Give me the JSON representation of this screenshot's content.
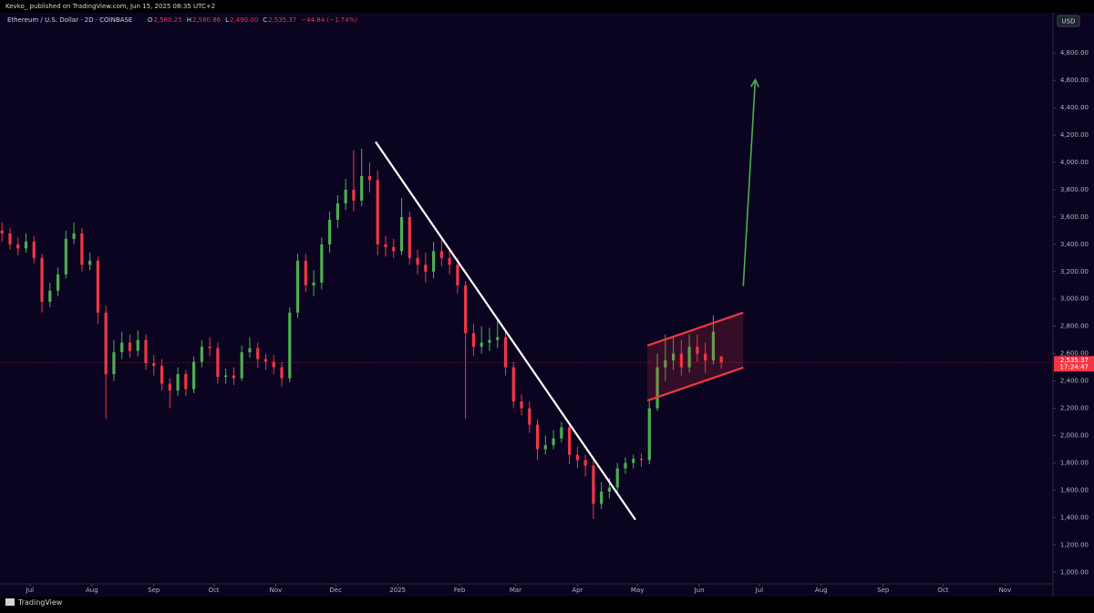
{
  "header": {
    "publisher": "Kevko_ published on TradingView.com, Jun 15, 2025 08:35 UTC+2",
    "symbol": "Ethereum / U.S. Dollar · 2D · COINBASE",
    "ohlc": [
      {
        "key": "O",
        "value": "2,580.25"
      },
      {
        "key": "H",
        "value": "2,580.86"
      },
      {
        "key": "L",
        "value": "2,490.00"
      },
      {
        "key": "C",
        "value": "2,535.37"
      }
    ],
    "change": "−44.84 (−1.74%)",
    "currency": "USD"
  },
  "footer": {
    "brand": "TradingView"
  },
  "chart_data": {
    "type": "candlestick",
    "x": [
      1,
      5,
      9,
      13,
      17,
      21,
      25,
      29,
      33,
      37,
      41,
      45,
      49,
      53,
      57,
      61,
      65,
      69,
      73,
      77,
      81,
      85,
      89,
      93,
      97,
      101,
      105,
      109,
      113,
      117,
      121,
      125,
      129,
      133,
      137,
      141,
      145,
      149,
      153,
      157,
      161,
      165,
      169,
      173,
      177,
      181,
      185,
      189,
      193,
      197,
      201,
      205,
      209,
      213,
      217,
      221,
      225,
      229,
      233,
      237,
      241,
      245,
      249,
      253,
      257,
      261,
      265,
      269,
      273,
      277,
      281,
      285,
      289,
      293,
      297,
      301,
      305,
      309,
      313,
      317,
      321,
      325,
      329,
      333,
      337,
      341,
      345,
      349,
      353,
      357,
      361
    ],
    "open": [
      3500,
      3480,
      3400,
      3370,
      3420,
      3300,
      2980,
      3060,
      3180,
      3440,
      3480,
      3250,
      3280,
      2900,
      2450,
      2610,
      2680,
      2620,
      2700,
      2530,
      2510,
      2380,
      2330,
      2450,
      2340,
      2540,
      2650,
      2640,
      2430,
      2440,
      2420,
      2610,
      2640,
      2560,
      2540,
      2500,
      2420,
      2900,
      3280,
      3100,
      3120,
      3400,
      3580,
      3700,
      3800,
      3720,
      3900,
      3870,
      3400,
      3380,
      3350,
      3600,
      3300,
      3250,
      3200,
      3350,
      3300,
      3250,
      3100,
      2750,
      2650,
      2680,
      2700,
      2720,
      2500,
      2250,
      2200,
      2080,
      1900,
      1930,
      1980,
      2060,
      1860,
      1820,
      1780,
      1500,
      1590,
      1620,
      1760,
      1800,
      1830,
      1820,
      2200,
      2500,
      2550,
      2600,
      2500,
      2650,
      2600,
      2550,
      2580.25
    ],
    "high": [
      3560,
      3520,
      3450,
      3480,
      3460,
      3330,
      3120,
      3230,
      3500,
      3560,
      3520,
      3340,
      3310,
      2950,
      2700,
      2760,
      2740,
      2770,
      2740,
      2590,
      2560,
      2420,
      2500,
      2480,
      2580,
      2700,
      2720,
      2680,
      2490,
      2500,
      2660,
      2720,
      2680,
      2600,
      2590,
      2540,
      2940,
      3330,
      3330,
      3210,
      3450,
      3640,
      3760,
      3880,
      4090,
      4100,
      4000,
      3940,
      3460,
      3440,
      3740,
      3640,
      3360,
      3340,
      3420,
      3430,
      3360,
      3300,
      3130,
      2820,
      2800,
      2790,
      2850,
      2760,
      2540,
      2300,
      2250,
      2120,
      2000,
      2040,
      2100,
      2080,
      1920,
      1860,
      1820,
      1660,
      1690,
      1800,
      1840,
      1860,
      1870,
      2250,
      2600,
      2740,
      2720,
      2700,
      2740,
      2740,
      2680,
      2880,
      2580.86
    ],
    "low": [
      3420,
      3360,
      3320,
      3340,
      3260,
      2900,
      2940,
      3020,
      3150,
      3400,
      3200,
      3210,
      2820,
      2120,
      2400,
      2560,
      2570,
      2580,
      2480,
      2440,
      2330,
      2200,
      2290,
      2290,
      2310,
      2500,
      2580,
      2380,
      2380,
      2370,
      2400,
      2570,
      2500,
      2480,
      2450,
      2360,
      2390,
      2860,
      3050,
      3020,
      3070,
      3340,
      3520,
      3650,
      3640,
      3680,
      3780,
      3320,
      3310,
      3300,
      3320,
      3250,
      3180,
      3120,
      3150,
      3240,
      3180,
      3040,
      2120,
      2580,
      2600,
      2620,
      2640,
      2440,
      2200,
      2150,
      2020,
      1820,
      1860,
      1900,
      1950,
      1790,
      1760,
      1700,
      1390,
      1460,
      1540,
      1580,
      1720,
      1760,
      1770,
      1790,
      2180,
      2400,
      2480,
      2440,
      2460,
      2540,
      2460,
      2520,
      2490
    ],
    "close": [
      3480,
      3400,
      3370,
      3420,
      3300,
      2980,
      3060,
      3180,
      3440,
      3480,
      3250,
      3280,
      2900,
      2450,
      2610,
      2680,
      2620,
      2700,
      2530,
      2510,
      2380,
      2330,
      2450,
      2340,
      2540,
      2650,
      2640,
      2430,
      2440,
      2420,
      2610,
      2640,
      2560,
      2540,
      2500,
      2420,
      2900,
      3280,
      3100,
      3120,
      3400,
      3580,
      3700,
      3800,
      3720,
      3900,
      3870,
      3400,
      3380,
      3350,
      3600,
      3300,
      3250,
      3200,
      3350,
      3300,
      3250,
      3100,
      2750,
      2650,
      2680,
      2700,
      2720,
      2500,
      2250,
      2200,
      2080,
      1900,
      1930,
      1980,
      2060,
      1860,
      1820,
      1780,
      1500,
      1590,
      1620,
      1760,
      1800,
      1830,
      1820,
      2200,
      2500,
      2550,
      2600,
      2500,
      2650,
      2600,
      2550,
      2760,
      2535.37
    ],
    "up_color": "#4caf50",
    "down_color": "#f23645",
    "xlim": [
      0,
      527
    ],
    "xticks": [
      {
        "value": 15,
        "label": "Jul"
      },
      {
        "value": 46,
        "label": "Aug"
      },
      {
        "value": 77,
        "label": "Sep"
      },
      {
        "value": 107,
        "label": "Oct"
      },
      {
        "value": 138,
        "label": "Nov"
      },
      {
        "value": 168,
        "label": "Dec"
      },
      {
        "value": 199,
        "label": "2025"
      },
      {
        "value": 230,
        "label": "Feb"
      },
      {
        "value": 258,
        "label": "Mar"
      },
      {
        "value": 289,
        "label": "Apr"
      },
      {
        "value": 319,
        "label": "May"
      },
      {
        "value": 350,
        "label": "Jun"
      },
      {
        "value": 380,
        "label": "Jul"
      },
      {
        "value": 411,
        "label": "Aug"
      },
      {
        "value": 442,
        "label": "Sep"
      },
      {
        "value": 472,
        "label": "Oct"
      },
      {
        "value": 503,
        "label": "Nov"
      }
    ],
    "ylim": [
      915,
      5095
    ],
    "yticks": [
      {
        "value": 1000,
        "label": "1,000.00"
      },
      {
        "value": 1200,
        "label": "1,200.00"
      },
      {
        "value": 1400,
        "label": "1,400.00"
      },
      {
        "value": 1600,
        "label": "1,600.00"
      },
      {
        "value": 1800,
        "label": "1,800.00"
      },
      {
        "value": 2000,
        "label": "2,000.00"
      },
      {
        "value": 2200,
        "label": "2,200.00"
      },
      {
        "value": 2400,
        "label": "2,400.00"
      },
      {
        "value": 2600,
        "label": "2,600.00"
      },
      {
        "value": 2800,
        "label": "2,800.00"
      },
      {
        "value": 3000,
        "label": "3,000.00"
      },
      {
        "value": 3200,
        "label": "3,200.00"
      },
      {
        "value": 3400,
        "label": "3,400.00"
      },
      {
        "value": 3600,
        "label": "3,600.00"
      },
      {
        "value": 3800,
        "label": "3,800.00"
      },
      {
        "value": 4000,
        "label": "4,000.00"
      },
      {
        "value": 4200,
        "label": "4,200.00"
      },
      {
        "value": 4400,
        "label": "4,400.00"
      },
      {
        "value": 4600,
        "label": "4,600.00"
      },
      {
        "value": 4800,
        "label": "4,800.00"
      }
    ],
    "grid": false,
    "last_price_label": "2,535.37",
    "countdown": "17:24:47",
    "drawings": [
      {
        "type": "trendline",
        "color": "#ffffff",
        "x": [
          188,
          318
        ],
        "y": [
          4150,
          1384
        ]
      },
      {
        "type": "channel",
        "color": "#f23645",
        "x": [
          324,
          372
        ],
        "upper": [
          2659,
          2900
        ],
        "lower": [
          2256,
          2498
        ]
      },
      {
        "type": "arrow",
        "color": "#4caf50",
        "x": [
          372,
          378
        ],
        "y": [
          3095,
          4605
        ]
      }
    ]
  }
}
